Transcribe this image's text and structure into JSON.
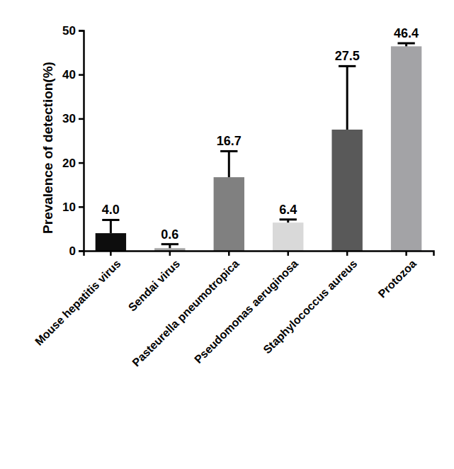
{
  "chart_data": {
    "type": "bar",
    "y_label": "Prevalence of detection(%)",
    "categories": [
      "Mouse hepatitis virus",
      "Sendai virus",
      "Pasteurella pneumotropica",
      "Pseudomonas aeruginosa",
      "Staphylococcus aureus",
      "Protozoa"
    ],
    "values": [
      4.0,
      0.6,
      16.7,
      6.4,
      27.5,
      46.4
    ],
    "value_labels": [
      "4.0",
      "0.6",
      "16.7",
      "6.4",
      "27.5",
      "46.4"
    ],
    "errors": [
      3.0,
      0.9,
      5.9,
      0.7,
      14.4,
      0.7
    ],
    "colors": [
      "#0d0d0d",
      "#a6a6a6",
      "#808080",
      "#d9d9d9",
      "#595959",
      "#a3a3a6"
    ],
    "ylim": [
      0,
      50
    ],
    "yticks": [
      0,
      10,
      20,
      30,
      40,
      50
    ],
    "data_labels": true,
    "grid": false
  }
}
